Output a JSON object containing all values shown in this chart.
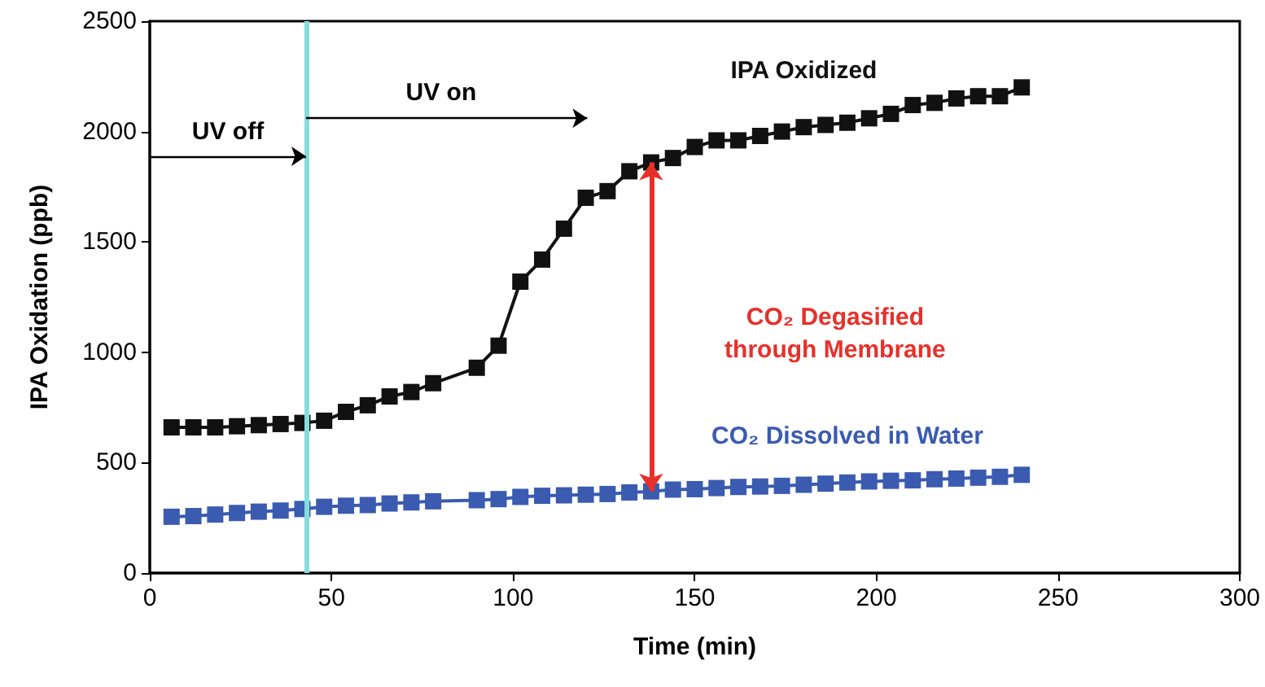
{
  "chart_data": {
    "type": "line",
    "xlabel": "Time (min)",
    "ylabel": "IPA Oxidation (ppb)",
    "xlim": [
      0,
      300
    ],
    "xticks": [
      0,
      50,
      100,
      150,
      200,
      250,
      300
    ],
    "ylim": [
      0,
      2500
    ],
    "yticks": [
      0,
      500,
      1000,
      1500,
      2000,
      2500
    ],
    "marker": "square",
    "legend": false,
    "grid": false,
    "series": [
      {
        "name": "IPA Oxidized",
        "color": "#111111",
        "x": [
          6,
          12,
          18,
          24,
          30,
          36,
          42,
          48,
          54,
          60,
          66,
          72,
          78,
          90,
          96,
          102,
          108,
          114,
          120,
          126,
          132,
          138,
          144,
          150,
          156,
          162,
          168,
          174,
          180,
          186,
          192,
          198,
          204,
          210,
          216,
          222,
          228,
          234,
          240
        ],
        "values": [
          660,
          660,
          660,
          665,
          670,
          675,
          680,
          690,
          730,
          760,
          800,
          820,
          860,
          930,
          1030,
          1320,
          1420,
          1560,
          1700,
          1730,
          1820,
          1860,
          1880,
          1930,
          1960,
          1960,
          1980,
          2000,
          2020,
          2030,
          2040,
          2060,
          2080,
          2120,
          2130,
          2150,
          2160,
          2160,
          2200
        ]
      },
      {
        "name": "CO₂ Dissolved in Water",
        "color": "#3a5bb0",
        "x": [
          6,
          12,
          18,
          24,
          30,
          36,
          42,
          48,
          54,
          60,
          66,
          72,
          78,
          90,
          96,
          102,
          108,
          114,
          120,
          126,
          132,
          138,
          144,
          150,
          156,
          162,
          168,
          174,
          180,
          186,
          192,
          198,
          204,
          210,
          216,
          222,
          228,
          234,
          240
        ],
        "values": [
          255,
          258,
          265,
          272,
          278,
          283,
          290,
          300,
          305,
          308,
          315,
          320,
          325,
          330,
          335,
          345,
          350,
          352,
          355,
          358,
          365,
          370,
          378,
          380,
          385,
          390,
          392,
          395,
          400,
          405,
          410,
          415,
          418,
          420,
          425,
          428,
          432,
          436,
          445
        ]
      }
    ],
    "ref_lines": [
      {
        "axis": "x",
        "value": 43,
        "color": "#88dcdc"
      }
    ],
    "annotations": [
      "UV off",
      "UV on",
      "CO₂ Degasified\nthrough Membrane"
    ]
  }
}
